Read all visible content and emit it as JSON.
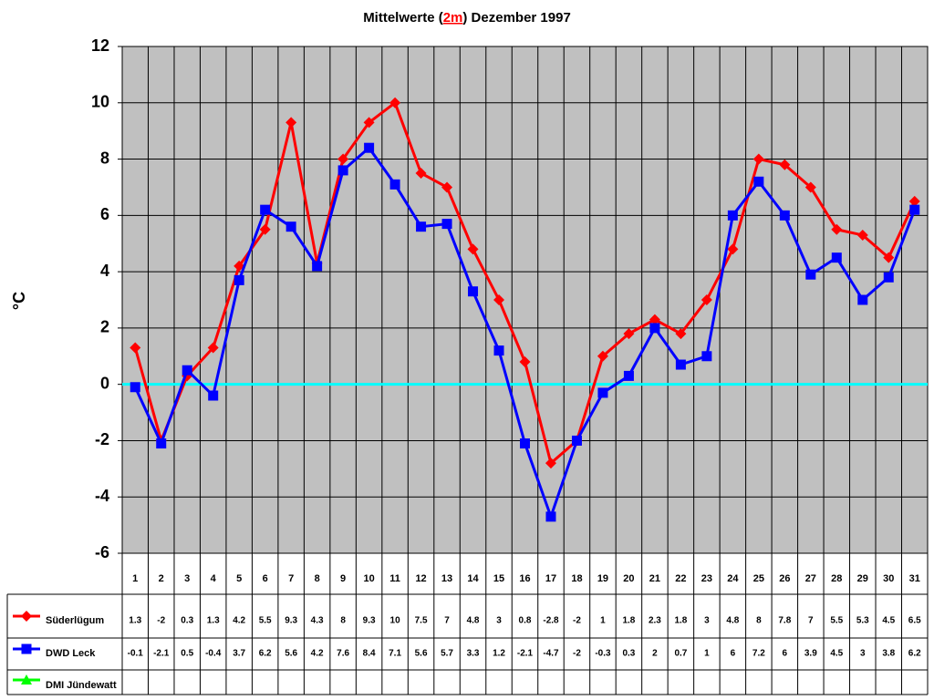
{
  "chart_data": {
    "type": "line",
    "title": {
      "before": "Mittelwerte (",
      "highlight": "2m",
      "after": ") Dezember 1997"
    },
    "highlight_color": "#ff0000",
    "y_label": "°C",
    "categories": [
      "1",
      "2",
      "3",
      "4",
      "5",
      "6",
      "7",
      "8",
      "9",
      "10",
      "11",
      "12",
      "13",
      "14",
      "15",
      "16",
      "17",
      "18",
      "19",
      "20",
      "21",
      "22",
      "23",
      "24",
      "25",
      "26",
      "27",
      "28",
      "29",
      "30",
      "31"
    ],
    "series": [
      {
        "name": "Süderlügum",
        "color": "#ff0000",
        "marker": "diamond",
        "values": [
          1.3,
          -2,
          0.3,
          1.3,
          4.2,
          5.5,
          9.3,
          4.3,
          8,
          9.3,
          10,
          7.5,
          7,
          4.8,
          3,
          0.8,
          -2.8,
          -2,
          1,
          1.8,
          2.3,
          1.8,
          3,
          4.8,
          8,
          7.8,
          7,
          5.5,
          5.3,
          4.5,
          6.5
        ]
      },
      {
        "name": "DWD Leck",
        "color": "#0000ff",
        "marker": "square",
        "values": [
          -0.1,
          -2.1,
          0.5,
          -0.4,
          3.7,
          6.2,
          5.6,
          4.2,
          7.6,
          8.4,
          7.1,
          5.6,
          5.7,
          3.3,
          1.2,
          -2.1,
          -4.7,
          -2,
          -0.3,
          0.3,
          2,
          0.7,
          1,
          6,
          7.2,
          6,
          3.9,
          4.5,
          3,
          3.8,
          6.2
        ]
      },
      {
        "name": "DMI Jündewatt",
        "color": "#00ff00",
        "marker": "triangle",
        "values": [
          null,
          null,
          null,
          null,
          null,
          null,
          null,
          null,
          null,
          null,
          null,
          null,
          null,
          null,
          null,
          null,
          null,
          null,
          null,
          null,
          null,
          null,
          null,
          null,
          null,
          null,
          null,
          null,
          null,
          null,
          null
        ]
      }
    ],
    "ylim": [
      -6,
      12
    ],
    "yticks": [
      -6,
      -4,
      -2,
      0,
      2,
      4,
      6,
      8,
      10,
      12
    ],
    "grid": true,
    "plot_background": "#c0c0c0",
    "zero_line_color": "#00ffff",
    "data_table": true
  }
}
